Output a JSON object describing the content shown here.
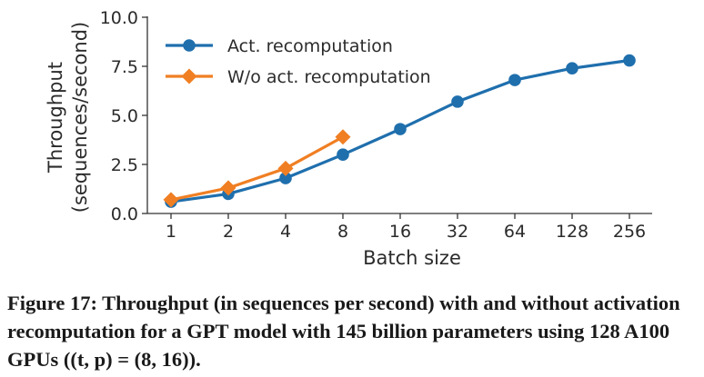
{
  "chart_data": {
    "type": "line",
    "title": "",
    "xlabel": "Batch size",
    "ylabel": "Throughput\n(sequences/second)",
    "categories": [
      "1",
      "2",
      "4",
      "8",
      "16",
      "32",
      "64",
      "128",
      "256"
    ],
    "ylim": [
      0,
      10
    ],
    "yticks": [
      "0.0",
      "2.5",
      "5.0",
      "7.5",
      "10.0"
    ],
    "grid": false,
    "legend_position": "top-left",
    "series": [
      {
        "name": "Act. recomputation",
        "color": "#1f6fad",
        "marker": "circle",
        "values": [
          0.6,
          1.0,
          1.8,
          3.0,
          4.3,
          5.7,
          6.8,
          7.4,
          7.8
        ]
      },
      {
        "name": "W/o act. recomputation",
        "color": "#f07f23",
        "marker": "diamond",
        "values": [
          0.7,
          1.3,
          2.3,
          3.9,
          null,
          null,
          null,
          null,
          null
        ]
      }
    ]
  },
  "caption": "Figure 17: Throughput (in sequences per second) with and without activation recomputation for a GPT model with 145 billion parameters using 128 A100 GPUs ((t, p) = (8, 16))."
}
